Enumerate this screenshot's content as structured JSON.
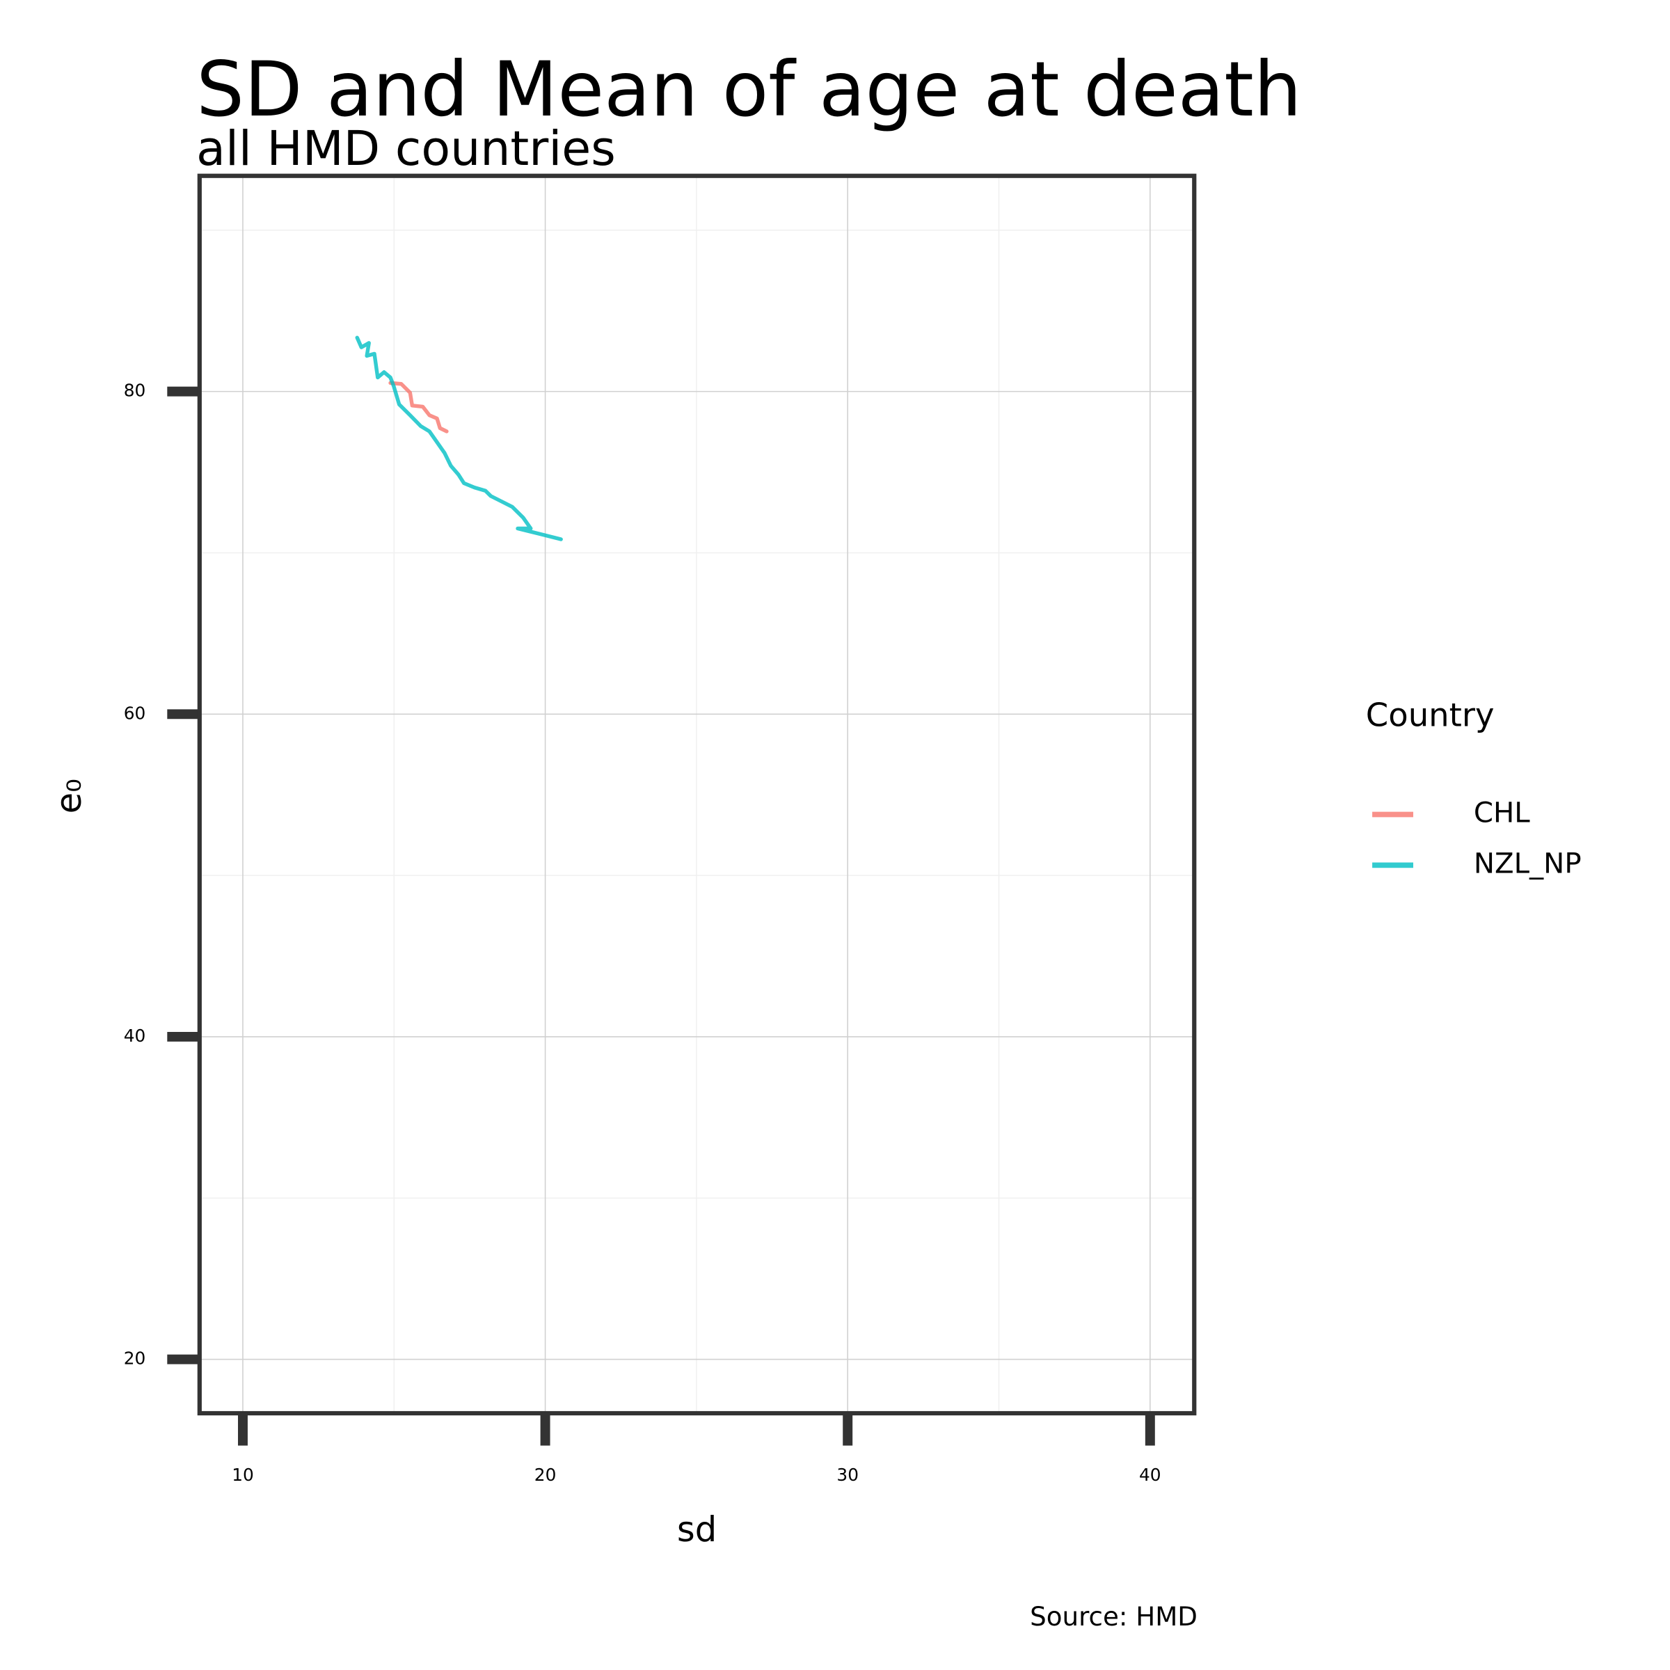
{
  "chart_data": {
    "type": "line",
    "title": "SD and Mean of age at death",
    "subtitle": "all HMD countries",
    "x_label": "sd",
    "y_label": "e₀",
    "caption": "Source: HMD",
    "legend_title": "Country",
    "legend_position": "right",
    "grid": true,
    "xlim": [
      8.57,
      41.46
    ],
    "ylim": [
      16.66,
      93.37
    ],
    "xticks": [
      10,
      20,
      30,
      40
    ],
    "yticks": [
      20,
      40,
      60,
      80
    ],
    "series": [
      {
        "name": "CHL",
        "color": "#f8766d",
        "x": [
          14.88,
          15.24,
          15.53,
          15.6,
          15.95,
          16.17,
          16.42,
          16.52,
          16.74
        ],
        "values": [
          80.53,
          80.47,
          79.93,
          79.13,
          79.06,
          78.53,
          78.33,
          77.73,
          77.53
        ]
      },
      {
        "name": "NZL_NP",
        "color": "#00bfc4",
        "x": [
          13.78,
          13.92,
          14.17,
          14.1,
          14.35,
          14.46,
          14.67,
          14.88,
          14.99,
          15.17,
          15.53,
          15.88,
          16.17,
          16.42,
          16.67,
          16.88,
          17.13,
          17.31,
          17.66,
          18.02,
          18.2,
          18.56,
          18.91,
          19.27,
          19.52,
          19.09,
          19.8,
          20.52
        ],
        "values": [
          83.34,
          82.74,
          83.01,
          82.21,
          82.34,
          80.87,
          81.2,
          80.87,
          80.33,
          79.2,
          78.53,
          77.86,
          77.53,
          76.86,
          76.19,
          75.39,
          74.85,
          74.32,
          74.05,
          73.85,
          73.52,
          73.18,
          72.85,
          72.18,
          71.51,
          71.51,
          71.18,
          70.84
        ]
      }
    ]
  }
}
